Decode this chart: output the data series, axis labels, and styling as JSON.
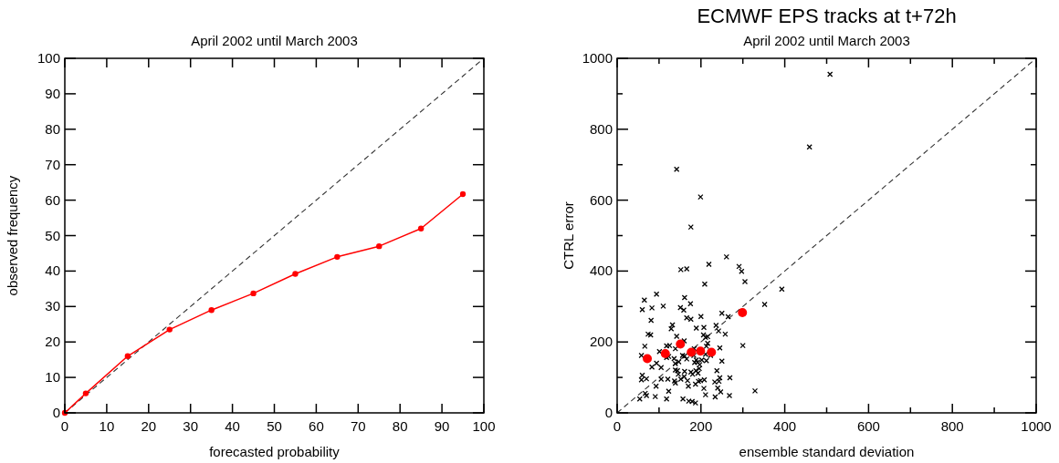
{
  "chart_data": [
    {
      "type": "line",
      "subtitle": "April 2002 until March 2003",
      "xlabel": "forecasted probability",
      "ylabel": "observed frequency",
      "xlim": [
        0,
        100
      ],
      "ylim": [
        0,
        100
      ],
      "xticks": [
        0,
        10,
        20,
        30,
        40,
        50,
        60,
        70,
        80,
        90,
        100
      ],
      "yticks": [
        0,
        10,
        20,
        30,
        40,
        50,
        60,
        70,
        80,
        90,
        100
      ],
      "grid": false,
      "series": [
        {
          "color": "#333333",
          "line_style": "dashed",
          "marker": "none",
          "x": [
            0,
            100
          ],
          "values": [
            0,
            100
          ]
        },
        {
          "color": "#ff0000",
          "line_style": "solid",
          "marker": "circle",
          "x": [
            0,
            5,
            15,
            25,
            35,
            45,
            55,
            65,
            75,
            85,
            95
          ],
          "values": [
            0,
            5.5,
            16,
            23.5,
            29,
            33.7,
            39.2,
            44,
            47,
            52,
            61.7
          ]
        }
      ]
    },
    {
      "type": "scatter",
      "title": "ECMWF EPS tracks at t+72h",
      "subtitle": "April 2002 until March 2003",
      "xlabel": "ensemble standard deviation",
      "ylabel": "CTRL error",
      "xlim": [
        0,
        1000
      ],
      "ylim": [
        0,
        1000
      ],
      "xticks": [
        0,
        {
          "value": 100,
          "label": null
        },
        200,
        {
          "value": 300,
          "label": null
        },
        400,
        {
          "value": 500,
          "label": null
        },
        600,
        {
          "value": 700,
          "label": null
        },
        800,
        {
          "value": 900,
          "label": null
        },
        1000
      ],
      "yticks": [
        0,
        {
          "value": 100,
          "label": null
        },
        200,
        {
          "value": 300,
          "label": null
        },
        400,
        {
          "value": 500,
          "label": null
        },
        600,
        {
          "value": 700,
          "label": null
        },
        800,
        {
          "value": 900,
          "label": null
        },
        1000
      ],
      "grid": false,
      "series": [
        {
          "type": "line",
          "color": "#333333",
          "line_style": "dashed",
          "marker": "none",
          "x": [
            0,
            1000
          ],
          "values": [
            0,
            1000
          ]
        },
        {
          "color": "#000000",
          "marker": "cross",
          "x": [
            508,
            459,
            142,
            199,
            176,
            261,
            219,
            291,
            152,
            166,
            297,
            305,
            209,
            393,
            94,
            161,
            65,
            110,
            175,
            60,
            83,
            151,
            159,
            352,
            250,
            265,
            166,
            176,
            200,
            81,
            132,
            129,
            189,
            207,
            236,
            242,
            258,
            74,
            80,
            142,
            206,
            216,
            211,
            160,
            66,
            118,
            125,
            101,
            139,
            184,
            216,
            213,
            245,
            300,
            58,
            156,
            161,
            183,
            211,
            223,
            250,
            83,
            94,
            105,
            118,
            123,
            136,
            139,
            147,
            166,
            185,
            189,
            192,
            197,
            202,
            213,
            139,
            144,
            161,
            176,
            188,
            196,
            146,
            160,
            180,
            193,
            238,
            60,
            58,
            70,
            105,
            121,
            137,
            152,
            168,
            187,
            194,
            199,
            208,
            233,
            243,
            245,
            269,
            93,
            139,
            170,
            207,
            240,
            247,
            329,
            67,
            70,
            91,
            123,
            54,
            118,
            157,
            171,
            179,
            187,
            211,
            234,
            268
          ],
          "values": [
            955,
            750,
            687,
            609,
            524,
            440,
            419,
            413,
            404,
            406,
            399,
            370,
            363,
            349,
            335,
            325,
            318,
            301,
            308,
            291,
            296,
            297,
            290,
            306,
            281,
            271,
            268,
            264,
            272,
            261,
            248,
            237,
            239,
            241,
            247,
            231,
            222,
            222,
            220,
            216,
            220,
            215,
            213,
            203,
            188,
            189,
            190,
            173,
            181,
            181,
            196,
            188,
            183,
            190,
            162,
            162,
            160,
            162,
            165,
            162,
            146,
            129,
            140,
            128,
            156,
            159,
            153,
            139,
            144,
            152,
            142,
            149,
            143,
            136,
            149,
            147,
            121,
            119,
            117,
            115,
            119,
            125,
            109,
            102,
            109,
            112,
            119,
            106,
            93,
            96,
            95,
            95,
            90,
            95,
            91,
            81,
            89,
            91,
            93,
            87,
            89,
            99,
            99,
            75,
            84,
            75,
            69,
            70,
            59,
            62,
            55,
            49,
            46,
            61,
            39,
            39,
            39,
            33,
            32,
            28,
            51,
            45,
            49
          ]
        },
        {
          "color": "#ff0000",
          "marker": "circle",
          "x": [
            72,
            115,
            151,
            177,
            199,
            225,
            299
          ],
          "values": [
            153,
            167,
            194,
            171,
            174,
            171,
            283
          ]
        }
      ]
    }
  ]
}
